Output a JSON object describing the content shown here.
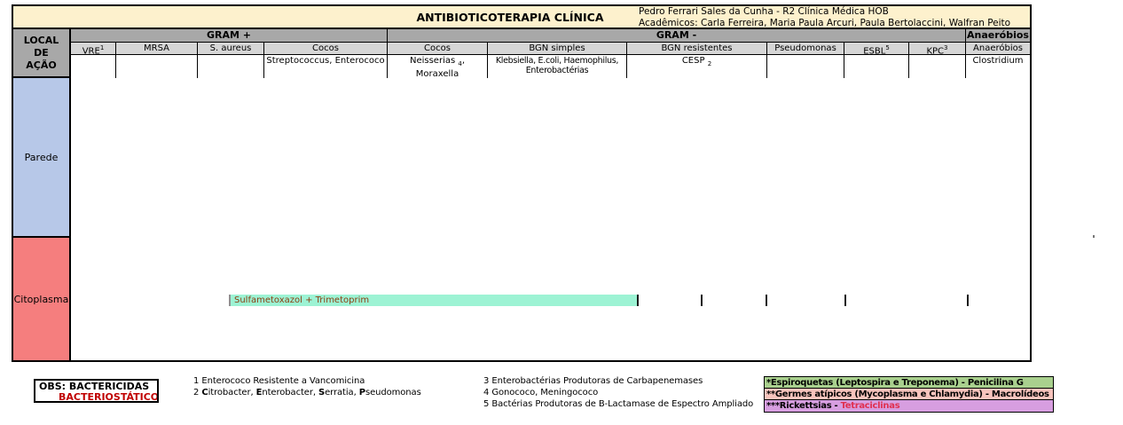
{
  "title": "ANTIBIOTICOTERAPIA CLÍNICA",
  "credits": {
    "line1": "Pedro Ferrari Sales da Cunha - R2 Clínica Médica HOB",
    "line2": "Acadêmicos: Carla Ferreira, Maria Paula Arcuri, Paula Bertolaccini, Walfran Peito"
  },
  "local": {
    "l1": "LOCAL",
    "l2": "DE",
    "l3": "AÇÃO"
  },
  "groups": {
    "gram_pos": "GRAM +",
    "gram_neg": "GRAM -",
    "anaerobios": "Anaeróbios"
  },
  "cols": [
    {
      "label": "VRE",
      "sup": "1"
    },
    {
      "label": "MRSA"
    },
    {
      "label": "S. aureus"
    },
    {
      "label": "Cocos"
    },
    {
      "label": "Cocos"
    },
    {
      "label": "BGN simples"
    },
    {
      "label": "BGN resistentes"
    },
    {
      "label": "Pseudomonas"
    },
    {
      "label": "ESBL",
      "sup": "5"
    },
    {
      "label": "KPC",
      "sup": "3"
    },
    {
      "label": "Anaeróbios"
    }
  ],
  "subs": {
    "cocos1": "Streptococcus, Enterococo",
    "cocos2": {
      "pre": "Neisserias ",
      "subnum": "4",
      "post": ", Moraxella"
    },
    "bgn_simples": {
      "line1": "Klebsiella, E.coli, Haemophilus,",
      "line2": "Enterobactérias"
    },
    "bgn_res": {
      "pre": "CESP ",
      "subnum": "2"
    },
    "anaerobios": "Clostridium"
  },
  "rows": {
    "parede": {
      "label": "Parede"
    },
    "citoplasma": {
      "label": "Citoplasma"
    }
  },
  "bar": {
    "label": "Sulfametoxazol + Trimetoprim"
  },
  "obs": {
    "line1": "OBS: BACTERICIDAS",
    "line2": "BACTERIOSTÁTICOS"
  },
  "footnotes": {
    "n1": {
      "num": "1",
      "text": "Enterococo Resistente a Vancomicina"
    },
    "n2": {
      "num": "2",
      "b1": "C",
      "t1": "itrobacter, ",
      "b2": "E",
      "t2": "nterobacter, ",
      "b3": "S",
      "t3": "erratia, ",
      "b4": "P",
      "t4": "seudomonas"
    },
    "n3": {
      "num": "3",
      "text": "Enterobactérias Produtoras de Carbapenemases"
    },
    "n4": {
      "num": "4",
      "text": "Gonococo, Meningococo"
    },
    "n5": {
      "num": "5",
      "text": "Bactérias Produtoras de B-Lactamase de Espectro Ampliado"
    }
  },
  "legend": {
    "row1": {
      "text": "*Espiroquetas (Leptospira e Treponema) - Penicilina G"
    },
    "row2": {
      "text": "**Germes atípicos (Mycoplasma e Chlamydia) - Macrolídeos"
    },
    "row3": {
      "pre": "***Rickettsias - ",
      "highlight": "Tetraciclinas"
    }
  },
  "colors": {
    "title_bg": "#fdf1cd",
    "group_header_gray": "#a8a8a8",
    "column_header_gray": "#d6d6d6",
    "parede_blue": "#b7c8e8",
    "citoplasma_red": "#f57e7e",
    "bar_teal": "#9df3d4",
    "bar_text": "#8b3e12",
    "obs_red": "#c00000",
    "legend_green": "#a9d08e",
    "legend_pink": "#f8c4bd",
    "legend_purple": "#d79ee0",
    "tetraciclinas_red": "#e03050"
  }
}
